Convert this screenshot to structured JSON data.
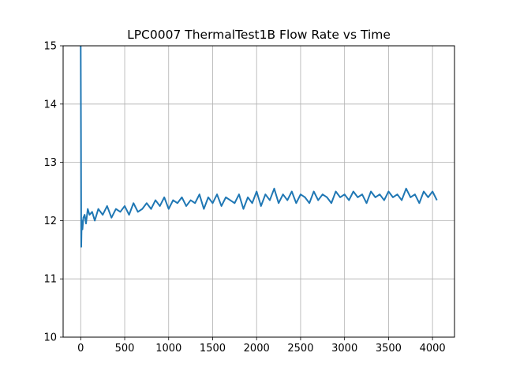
{
  "chart_data": {
    "type": "line",
    "title": "LPC0007 ThermalTest1B Flow Rate vs Time",
    "xlabel": "",
    "ylabel": "",
    "xlim": [
      -200,
      4250
    ],
    "ylim": [
      10,
      15
    ],
    "xticks": [
      0,
      500,
      1000,
      1500,
      2000,
      2500,
      3000,
      3500,
      4000
    ],
    "yticks": [
      10,
      11,
      12,
      13,
      14,
      15
    ],
    "grid": true,
    "legend": "none",
    "colors": {
      "series": "#1f77b4",
      "grid": "#b0b0b0",
      "axes": "#000000"
    },
    "series": [
      {
        "color": "#1f77b4",
        "x": [
          0,
          3,
          6,
          10,
          15,
          20,
          30,
          45,
          60,
          80,
          100,
          130,
          160,
          200,
          250,
          300,
          350,
          400,
          450,
          500,
          550,
          600,
          650,
          700,
          750,
          800,
          850,
          900,
          950,
          1000,
          1050,
          1100,
          1150,
          1200,
          1250,
          1300,
          1350,
          1400,
          1450,
          1500,
          1550,
          1600,
          1650,
          1700,
          1750,
          1800,
          1850,
          1900,
          1950,
          2000,
          2050,
          2100,
          2150,
          2200,
          2250,
          2300,
          2350,
          2400,
          2450,
          2500,
          2550,
          2600,
          2650,
          2700,
          2750,
          2800,
          2850,
          2900,
          2950,
          3000,
          3050,
          3100,
          3150,
          3200,
          3250,
          3300,
          3350,
          3400,
          3450,
          3500,
          3550,
          3600,
          3650,
          3700,
          3750,
          3800,
          3850,
          3900,
          3950,
          4000,
          4050
        ],
        "y": [
          15.0,
          13.5,
          11.55,
          11.9,
          12.0,
          11.85,
          12.05,
          12.1,
          11.95,
          12.2,
          12.1,
          12.15,
          12.0,
          12.2,
          12.1,
          12.25,
          12.05,
          12.2,
          12.15,
          12.25,
          12.1,
          12.3,
          12.15,
          12.2,
          12.3,
          12.2,
          12.35,
          12.25,
          12.4,
          12.2,
          12.35,
          12.3,
          12.4,
          12.25,
          12.35,
          12.3,
          12.45,
          12.2,
          12.4,
          12.3,
          12.45,
          12.25,
          12.4,
          12.35,
          12.3,
          12.45,
          12.2,
          12.4,
          12.3,
          12.5,
          12.25,
          12.45,
          12.35,
          12.55,
          12.3,
          12.45,
          12.35,
          12.5,
          12.3,
          12.45,
          12.4,
          12.3,
          12.5,
          12.35,
          12.45,
          12.4,
          12.3,
          12.5,
          12.4,
          12.45,
          12.35,
          12.5,
          12.4,
          12.45,
          12.3,
          12.5,
          12.4,
          12.45,
          12.35,
          12.5,
          12.4,
          12.45,
          12.35,
          12.55,
          12.4,
          12.45,
          12.3,
          12.5,
          12.4,
          12.5,
          12.35
        ]
      }
    ]
  }
}
